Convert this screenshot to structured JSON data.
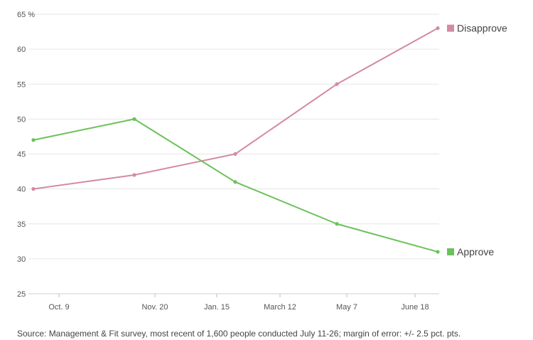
{
  "chart_data": {
    "type": "line",
    "x_ticks": [
      "Oct. 9",
      "Nov. 20",
      "Jan. 15",
      "March 12",
      "May 7",
      "June 18"
    ],
    "y_ticks": [
      "65 %",
      "60",
      "55",
      "50",
      "45",
      "40",
      "35",
      "30",
      "25"
    ],
    "ylim": [
      25,
      65
    ],
    "grid": true,
    "legend": "right-end",
    "series": [
      {
        "name": "Disapprove",
        "color": "#d48aa6",
        "x": [
          "Oct. 9",
          "Nov. 20",
          "Jan. 15",
          "March 12",
          "May 7",
          "June 18"
        ],
        "points": [
          {
            "x": "Oct. 9",
            "y": 40
          },
          {
            "x": "Nov. 20",
            "y": 42
          },
          {
            "x": "Jan. 15",
            "y": 45
          },
          {
            "x": "May 7",
            "y": 55
          },
          {
            "x": "June 18",
            "y": 63
          }
        ]
      },
      {
        "name": "Approve",
        "color": "#6cc15a",
        "points": [
          {
            "x": "Oct. 9",
            "y": 47
          },
          {
            "x": "Nov. 20",
            "y": 50
          },
          {
            "x": "Jan. 15",
            "y": 41
          },
          {
            "x": "May 7",
            "y": 35
          },
          {
            "x": "June 18",
            "y": 31
          }
        ]
      }
    ]
  },
  "source": "Source: Management & Fit survey, most recent of 1,600 people conducted July 11-26; margin of error: +/- 2.5 pct. pts."
}
